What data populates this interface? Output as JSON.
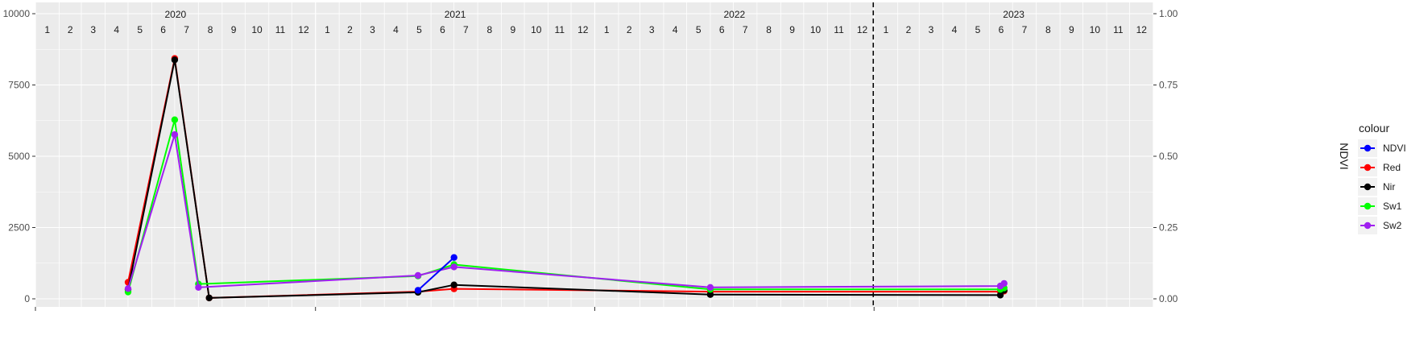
{
  "chart_data": {
    "type": "line",
    "x_unit": "month",
    "x_range": [
      "2020-01",
      "2023-12"
    ],
    "years": [
      "2020",
      "2021",
      "2022",
      "2023"
    ],
    "month_labels": [
      "1",
      "2",
      "3",
      "4",
      "5",
      "6",
      "7",
      "8",
      "9",
      "10",
      "11",
      "12"
    ],
    "y_left_ticks": [
      "0",
      "2500",
      "5000",
      "7500",
      "10000"
    ],
    "y_left_range": [
      0,
      10000
    ],
    "y_right_ticks": [
      "0.00",
      "0.25",
      "0.50",
      "0.75",
      "1.00"
    ],
    "y_right_range": [
      0,
      1
    ],
    "y_right_label": "NDVI",
    "vline_x": "2022-12-31",
    "grid": true,
    "legend": {
      "title": "colour",
      "position": "right"
    },
    "series": [
      {
        "name": "NDVI",
        "color": "#0000ff",
        "axis": "right",
        "x": [
          "2021-05-15",
          "2021-07-01"
        ],
        "y": [
          0.03,
          0.145
        ]
      },
      {
        "name": "Red",
        "color": "#ff0000",
        "axis": "left",
        "x": [
          "2020-05-01",
          "2020-07-01",
          "2020-08-15",
          "2021-05-15",
          "2021-07-01",
          "2022-06-01",
          "2023-06-15",
          "2023-06-20"
        ],
        "y": [
          580,
          8430,
          30,
          250,
          350,
          250,
          250,
          270
        ]
      },
      {
        "name": "Nir",
        "color": "#000000",
        "axis": "left",
        "x": [
          "2020-05-01",
          "2020-07-01",
          "2020-08-15",
          "2021-05-15",
          "2021-07-01",
          "2022-06-01",
          "2023-06-15",
          "2023-06-20"
        ],
        "y": [
          330,
          8380,
          30,
          230,
          490,
          150,
          130,
          300
        ]
      },
      {
        "name": "Sw1",
        "color": "#00ff00",
        "axis": "left",
        "x": [
          "2020-05-01",
          "2020-07-01",
          "2020-08-01",
          "2021-05-15",
          "2021-07-01",
          "2022-06-01",
          "2023-06-15",
          "2023-06-20"
        ],
        "y": [
          240,
          6280,
          520,
          800,
          1200,
          330,
          330,
          380
        ]
      },
      {
        "name": "Sw2",
        "color": "#a020f0",
        "axis": "left",
        "x": [
          "2020-05-01",
          "2020-07-01",
          "2020-08-01",
          "2021-05-15",
          "2021-07-01",
          "2022-06-01",
          "2023-06-15",
          "2023-06-20"
        ],
        "y": [
          360,
          5760,
          400,
          820,
          1120,
          400,
          450,
          540
        ]
      }
    ]
  }
}
